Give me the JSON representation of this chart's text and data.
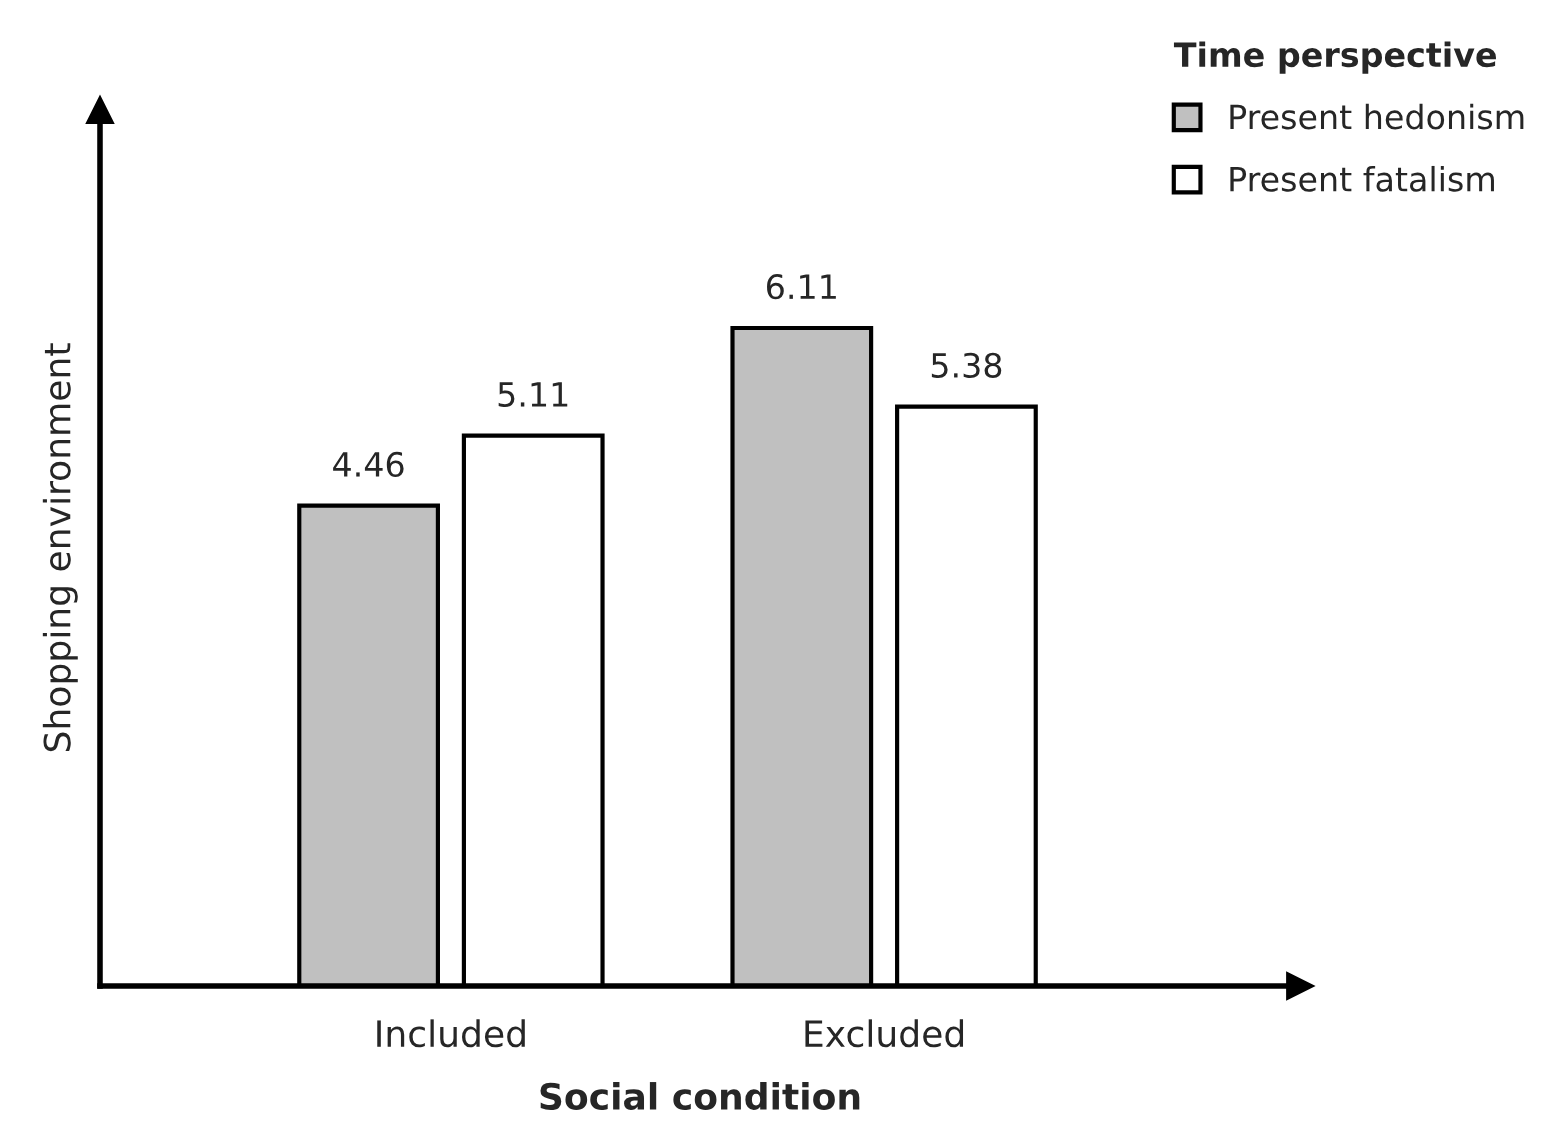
{
  "chart_data": {
    "type": "bar",
    "xlabel": "Social condition",
    "ylabel": "Shopping environment",
    "legend_title": "Time perspective",
    "categories": [
      "Included",
      "Excluded"
    ],
    "series": [
      {
        "name": "Present hedonism",
        "color": "#c0c0c0",
        "values": [
          4.46,
          6.11
        ]
      },
      {
        "name": "Present fatalism",
        "color": "#ffffff",
        "values": [
          5.11,
          5.38
        ]
      }
    ],
    "data_labels": true,
    "legend": "top right",
    "tick_labels": "x",
    "grid": false
  }
}
